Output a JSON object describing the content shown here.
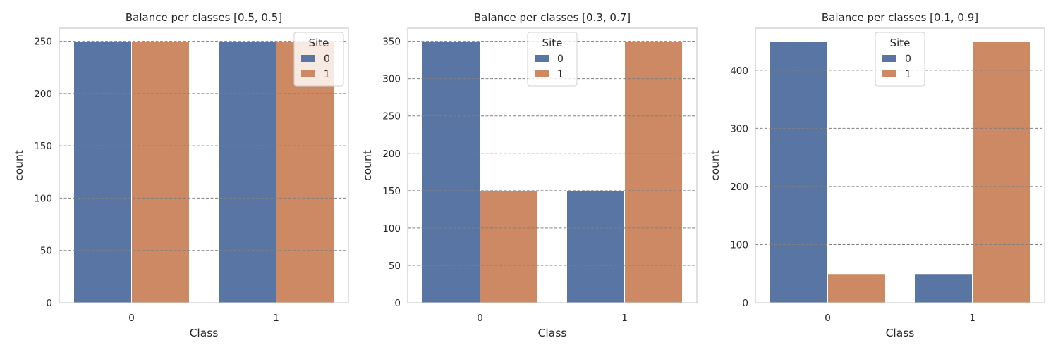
{
  "colors": {
    "site0": "#5875a4",
    "site1": "#cc8963",
    "grid": "#808080",
    "frame": "#cccccc"
  },
  "chart_data": [
    {
      "type": "bar",
      "title": "Balance per classes [0.5, 0.5]",
      "xlabel": "Class",
      "ylabel": "count",
      "categories": [
        "0",
        "1"
      ],
      "series": [
        {
          "name": "0",
          "values": [
            250,
            250
          ]
        },
        {
          "name": "1",
          "values": [
            250,
            250
          ]
        }
      ],
      "ylim": [
        0,
        262.5
      ],
      "yticks": [
        0,
        50,
        100,
        150,
        200,
        250
      ],
      "legend_title": "Site",
      "legend_loc": "upper right",
      "grid": true
    },
    {
      "type": "bar",
      "title": "Balance per classes [0.3, 0.7]",
      "xlabel": "Class",
      "ylabel": "count",
      "categories": [
        "0",
        "1"
      ],
      "series": [
        {
          "name": "0",
          "values": [
            350,
            150
          ]
        },
        {
          "name": "1",
          "values": [
            150,
            350
          ]
        }
      ],
      "ylim": [
        0,
        367.5
      ],
      "yticks": [
        0,
        50,
        100,
        150,
        200,
        250,
        300,
        350
      ],
      "legend_title": "Site",
      "legend_loc": "upper center",
      "grid": true
    },
    {
      "type": "bar",
      "title": "Balance per classes [0.1, 0.9]",
      "xlabel": "Class",
      "ylabel": "count",
      "categories": [
        "0",
        "1"
      ],
      "series": [
        {
          "name": "0",
          "values": [
            450,
            50
          ]
        },
        {
          "name": "1",
          "values": [
            50,
            450
          ]
        }
      ],
      "ylim": [
        0,
        472.5
      ],
      "yticks": [
        0,
        100,
        200,
        300,
        400
      ],
      "legend_title": "Site",
      "legend_loc": "upper center",
      "grid": true
    }
  ]
}
